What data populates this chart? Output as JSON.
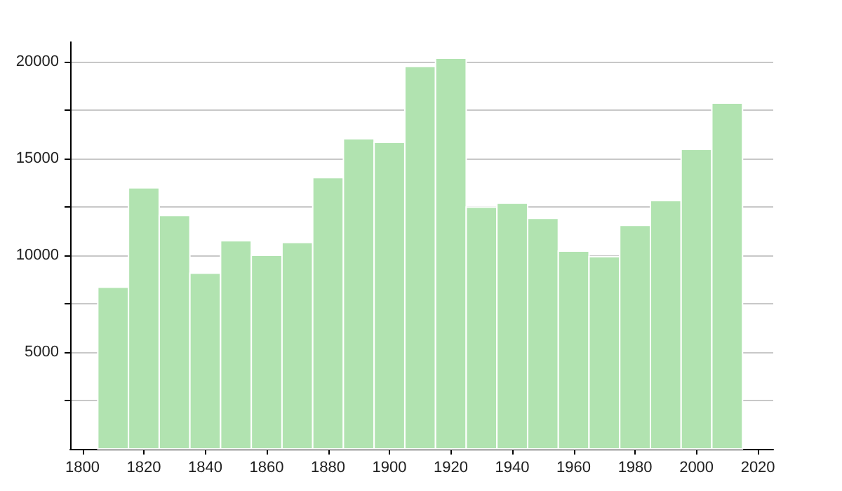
{
  "chart_data": {
    "type": "histogram",
    "bins": [
      1805,
      1815,
      1825,
      1835,
      1845,
      1855,
      1865,
      1875,
      1885,
      1895,
      1905,
      1915,
      1925,
      1935,
      1945,
      1955,
      1965,
      1975,
      1985,
      1995,
      2005,
      2015
    ],
    "values": [
      8350,
      13480,
      12050,
      9070,
      10740,
      9990,
      10650,
      14000,
      16010,
      15820,
      19740,
      20170,
      12480,
      12680,
      11900,
      10210,
      9920,
      11540,
      12820,
      15460,
      17850
    ],
    "color": "#b1e3b0",
    "xlim": [
      1796,
      2025
    ],
    "xticks": [
      1800,
      1820,
      1840,
      1860,
      1880,
      1900,
      1920,
      1940,
      1960,
      1980,
      2000,
      2020
    ],
    "ylim": [
      0,
      21000
    ],
    "yticks": [
      {
        "value": 2500,
        "label": null
      },
      5000,
      {
        "value": 7500,
        "label": null
      },
      10000,
      {
        "value": 12500,
        "label": null
      },
      15000,
      {
        "value": 17500,
        "label": null
      },
      20000
    ],
    "grid": "y"
  }
}
